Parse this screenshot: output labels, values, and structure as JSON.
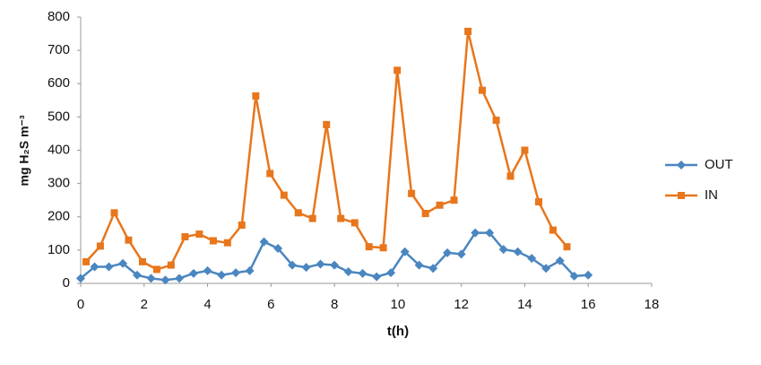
{
  "chart_data": {
    "type": "line",
    "x_label": "t(h)",
    "y_label": "mg H₂S m⁻³",
    "xlim": [
      0,
      18
    ],
    "xticks": [
      0,
      2,
      4,
      6,
      8,
      10,
      12,
      14,
      16,
      18
    ],
    "ylim": [
      0,
      800
    ],
    "yticks": [
      0,
      100,
      200,
      300,
      400,
      500,
      600,
      700,
      800
    ],
    "grid": false,
    "legend": "right",
    "series": [
      {
        "name": "OUT",
        "color": "#4a86c0",
        "marker": "diamond",
        "x": [
          0,
          0.44,
          0.89,
          1.33,
          1.78,
          2.22,
          2.67,
          3.11,
          3.56,
          4,
          4.44,
          4.89,
          5.33,
          5.78,
          6.22,
          6.67,
          7.11,
          7.56,
          8,
          8.44,
          8.89,
          9.33,
          9.78,
          10.22,
          10.67,
          11.11,
          11.56,
          12,
          12.44,
          12.89,
          13.33,
          13.78,
          14.22,
          14.67,
          15.11,
          15.56,
          16
        ],
        "values": [
          15,
          50,
          50,
          60,
          25,
          15,
          10,
          15,
          30,
          38,
          25,
          32,
          38,
          125,
          105,
          55,
          48,
          58,
          55,
          35,
          30,
          20,
          32,
          95,
          55,
          45,
          92,
          88,
          152,
          152,
          102,
          95,
          75,
          45,
          68,
          22,
          25
        ]
      },
      {
        "name": "IN",
        "color": "#e8761c",
        "marker": "square",
        "x": [
          0.17,
          0.62,
          1.06,
          1.51,
          1.95,
          2.4,
          2.85,
          3.29,
          3.74,
          4.18,
          4.63,
          5.08,
          5.52,
          5.97,
          6.41,
          6.86,
          7.31,
          7.75,
          8.2,
          8.64,
          9.09,
          9.54,
          9.98,
          10.43,
          10.87,
          11.32,
          11.77,
          12.21,
          12.66,
          13.1,
          13.55,
          14,
          14.44,
          14.89,
          15.33
        ],
        "values": [
          65,
          112,
          212,
          130,
          65,
          42,
          55,
          140,
          148,
          128,
          122,
          175,
          563,
          330,
          265,
          212,
          195,
          477,
          195,
          182,
          110,
          107,
          640,
          270,
          210,
          235,
          250,
          757,
          580,
          490,
          322,
          400,
          245,
          160,
          110
        ]
      }
    ]
  }
}
